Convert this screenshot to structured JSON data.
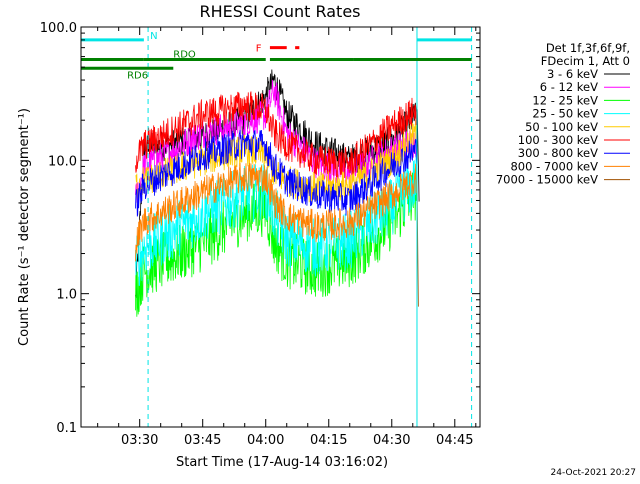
{
  "chart_data": {
    "type": "line",
    "title": "RHESSI Count Rates",
    "xlabel": "Start Time (17-Aug-14 03:16:02)",
    "ylabel": "Count Rate (s⁻¹ detector segment⁻¹)",
    "yscale": "log",
    "ylim": [
      0.1,
      100.0
    ],
    "y_ticks": [
      "0.1",
      "1.0",
      "10.0",
      "100.0"
    ],
    "xlim": [
      "03:16:02",
      "04:51:00"
    ],
    "x_ticks": [
      "03:30",
      "03:45",
      "04:00",
      "04:15",
      "04:30",
      "04:45"
    ],
    "grid": false,
    "legend_position": "right",
    "legend_header": [
      "Det 1f,3f,6f,9f,",
      "FDecim 1, Att 0"
    ],
    "series": [
      {
        "name": "3 - 6 keV",
        "color": "#000000",
        "points": [
          [
            "03:29",
            0.9
          ],
          [
            "03:31",
            12
          ],
          [
            "03:45",
            15
          ],
          [
            "03:55",
            20
          ],
          [
            "04:00",
            30
          ],
          [
            "04:02",
            40
          ],
          [
            "04:05",
            22
          ],
          [
            "04:12",
            13
          ],
          [
            "04:20",
            10
          ],
          [
            "04:30",
            14
          ],
          [
            "04:36",
            22
          ],
          [
            "04:36:30",
            6
          ]
        ]
      },
      {
        "name": "6 - 12 keV",
        "color": "#ff00ff",
        "points": [
          [
            "03:29",
            5
          ],
          [
            "03:31",
            9
          ],
          [
            "03:45",
            16
          ],
          [
            "03:55",
            19
          ],
          [
            "04:00",
            22
          ],
          [
            "04:02",
            34
          ],
          [
            "04:05",
            16
          ],
          [
            "04:12",
            9.5
          ],
          [
            "04:20",
            8
          ],
          [
            "04:30",
            12
          ],
          [
            "04:36",
            14
          ]
        ]
      },
      {
        "name": "12 - 25 keV",
        "color": "#00ff00",
        "points": [
          [
            "03:29",
            1.0
          ],
          [
            "03:31",
            1.5
          ],
          [
            "03:45",
            2.4
          ],
          [
            "03:55",
            4.0
          ],
          [
            "04:00",
            4.5
          ],
          [
            "04:02",
            2.5
          ],
          [
            "04:05",
            1.8
          ],
          [
            "04:12",
            1.5
          ],
          [
            "04:20",
            1.8
          ],
          [
            "04:30",
            3.5
          ],
          [
            "04:36",
            6.0
          ]
        ]
      },
      {
        "name": "25 - 50 keV",
        "color": "#00ffff",
        "points": [
          [
            "03:29",
            1.6
          ],
          [
            "03:31",
            2.2
          ],
          [
            "03:45",
            4.0
          ],
          [
            "03:55",
            5.5
          ],
          [
            "04:00",
            6.0
          ],
          [
            "04:02",
            4.0
          ],
          [
            "04:05",
            2.6
          ],
          [
            "04:12",
            2.2
          ],
          [
            "04:20",
            2.5
          ],
          [
            "04:30",
            4.5
          ],
          [
            "04:36",
            7.0
          ]
        ]
      },
      {
        "name": "50 - 100 keV",
        "color": "#ffcc00",
        "points": [
          [
            "03:29",
            6.5
          ],
          [
            "03:31",
            7.0
          ],
          [
            "03:45",
            10
          ],
          [
            "03:55",
            12
          ],
          [
            "04:00",
            11
          ],
          [
            "04:02",
            8
          ],
          [
            "04:05",
            7
          ],
          [
            "04:12",
            6.2
          ],
          [
            "04:20",
            6.5
          ],
          [
            "04:30",
            10
          ],
          [
            "04:36",
            16
          ]
        ]
      },
      {
        "name": "100 - 300 keV",
        "color": "#ff0000",
        "points": [
          [
            "03:29",
            10
          ],
          [
            "03:31",
            13
          ],
          [
            "03:45",
            22
          ],
          [
            "03:55",
            26
          ],
          [
            "04:00",
            24
          ],
          [
            "04:02",
            16
          ],
          [
            "04:05",
            13
          ],
          [
            "04:12",
            10
          ],
          [
            "04:20",
            9.5
          ],
          [
            "04:30",
            18
          ],
          [
            "04:36",
            24
          ]
        ]
      },
      {
        "name": "300 - 800 keV",
        "color": "#0000ff",
        "points": [
          [
            "03:29",
            4.5
          ],
          [
            "03:31",
            6.5
          ],
          [
            "03:45",
            11
          ],
          [
            "03:55",
            13.5
          ],
          [
            "04:00",
            13
          ],
          [
            "04:02",
            9
          ],
          [
            "04:05",
            7
          ],
          [
            "04:12",
            5.5
          ],
          [
            "04:20",
            5.0
          ],
          [
            "04:30",
            9
          ],
          [
            "04:36",
            12
          ]
        ]
      },
      {
        "name": "800 - 7000 keV",
        "color": "#ff8000",
        "points": [
          [
            "03:29",
            2.3
          ],
          [
            "03:31",
            3.5
          ],
          [
            "03:45",
            5.8
          ],
          [
            "03:55",
            7.5
          ],
          [
            "04:00",
            7.5
          ],
          [
            "04:02",
            5.0
          ],
          [
            "04:05",
            3.8
          ],
          [
            "04:12",
            3.2
          ],
          [
            "04:20",
            3.4
          ],
          [
            "04:30",
            5.5
          ],
          [
            "04:36",
            7.5
          ]
        ]
      },
      {
        "name": "7000 - 15000 keV",
        "color": "#a05000",
        "points": [
          [
            "04:36",
            8.0
          ],
          [
            "04:36:20",
            0.8
          ]
        ]
      }
    ],
    "annotations": [
      {
        "label": "N",
        "color": "#00e5e5",
        "y": 80.0,
        "segments": [
          [
            "03:16",
            "03:31"
          ],
          [
            "04:36",
            "04:49"
          ]
        ]
      },
      {
        "label": "RDO",
        "color": "#008000",
        "y": 57.0,
        "segments": [
          [
            "03:16",
            "03:31"
          ],
          [
            "03:31",
            "04:00"
          ],
          [
            "04:01",
            "04:21"
          ],
          [
            "04:21",
            "04:49"
          ]
        ]
      },
      {
        "label": "RD6",
        "color": "#008000",
        "y": 49.0,
        "segments": [
          [
            "03:16",
            "03:38"
          ]
        ]
      },
      {
        "label": "F",
        "color": "#ff0000",
        "y": 70.0,
        "segments": [
          [
            "04:01",
            "04:05"
          ],
          [
            "04:07",
            "04:08"
          ]
        ]
      }
    ],
    "vlines": [
      {
        "x": "03:16:02",
        "color": "#00e5e5",
        "style": "solid"
      },
      {
        "x": "03:32",
        "color": "#00e5e5",
        "style": "dashed"
      },
      {
        "x": "04:36",
        "color": "#00e5e5",
        "style": "solid"
      },
      {
        "x": "04:49",
        "color": "#00e5e5",
        "style": "dashed"
      }
    ],
    "footer": "24-Oct-2021 20:27"
  }
}
